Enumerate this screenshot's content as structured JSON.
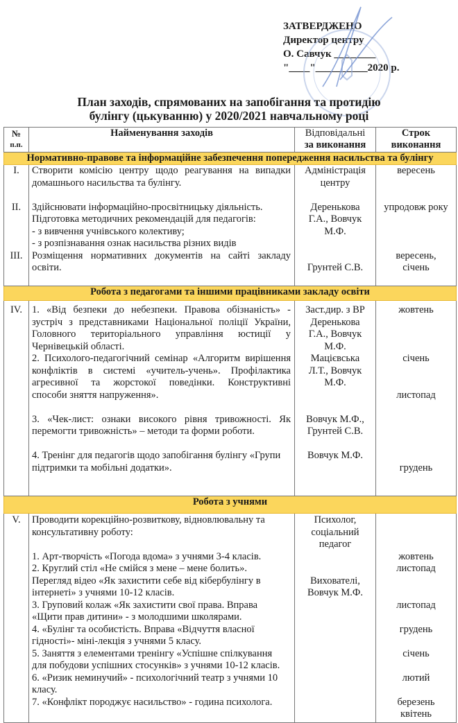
{
  "approval": {
    "line1": "ЗАТВЕРДЖЕНО",
    "line2": "Директор центру",
    "line3": " О. Савчук  ________",
    "line4": "\"____\"__________2020 р."
  },
  "title": {
    "line1": "План заходів, спрямованих на запобігання та протидію",
    "line2": "булінгу (цькуванню)  у 2020/2021 навчальному році"
  },
  "table": {
    "headers": {
      "num": [
        "№",
        "п.п."
      ],
      "name": [
        "Найменування заходів"
      ],
      "resp": [
        "Відповідальні",
        "за виконання"
      ],
      "term": [
        "Строк",
        "виконання"
      ]
    },
    "sections": [
      {
        "title": "Нормативно-правове та інформаційне забезпечення попередження насильства та булінгу",
        "row": {
          "num": [
            "I.",
            "",
            "",
            "II.",
            "",
            "",
            "",
            "III."
          ],
          "name": [
            "Створити комісію центру  щодо реагування на випадки",
            "домашнього насильства та булінгу.",
            "",
            " Здійснювати інформаційно-просвітницьку діяльність.",
            " Підготовка методичних рекомендацій для педагогів:",
            " - з вивчення учнівського колективу;",
            " - з розпізнавання ознак насильства різних видів",
            "Розміщення нормативних документів на сайті закладу",
            "освіти."
          ],
          "resp": [
            "Адміністрація",
            "центру",
            "",
            "Деренькова",
            "Г.А., Вовчук",
            "М.Ф.",
            "",
            "",
            "Грунтей С.В."
          ],
          "term": [
            "вересень",
            "",
            "",
            "упродовж року",
            "",
            "",
            "",
            "вересень,",
            "січень"
          ]
        }
      },
      {
        "title": "Робота з педагогами та іншими працівниками закладу освіти",
        "row": {
          "num": [
            "IV."
          ],
          "name": [
            "1. «Від безпеки до небезпеки. Правова обізнаність» -",
            "зустріч з представниками  Національної поліції України,",
            "Головного територіального управління юстиції у",
            "Чернівецькій області.",
            "2. Психолого-педагогічний семінар «Алгоритм вирішення",
            "конфліктів в системі «учитель-учень». Профілактика",
            "агресивної та жорстокої поведінки. Конструктивні",
            "способи зняття напруження».",
            "",
            "3. «Чек-лист: ознаки високого рівня тривожності. Як",
            "перемогти тривожність» – методи та форми роботи.",
            "",
            "4. Тренінг для педагогів щодо запобігання булінгу  «Групи",
            "підтримки та мобільні додатки»."
          ],
          "resp": [
            "Заст.дир. з ВР",
            "Деренькова",
            "Г.А., Вовчук",
            "М.Ф.",
            "Мацієвська",
            "Л.Т., Вовчук",
            "М.Ф.",
            "",
            "",
            "Вовчук М.Ф.,",
            "Грунтей С.В.",
            "",
            "Вовчук М.Ф."
          ],
          "term": [
            "жовтень",
            "",
            "",
            "",
            "січень",
            "",
            "",
            "листопад",
            "",
            "",
            "",
            "",
            "",
            "грудень"
          ]
        }
      },
      {
        "title": "Робота з учнями",
        "row": {
          "num": [
            "V."
          ],
          "name": [
            "Проводити корекційно-розвиткову, відновлювальну  та",
            "консультативну роботу:",
            "",
            "1. Арт-творчість «Погода вдома» з учнями 3-4 класів.",
            "2. Круглий стіл «Не смійся з мене – мене болить».",
            "Перегляд відео «Як захистити себе від кібербулінгу в",
            "інтернеті» з учнями 10-12 класів.",
            "3. Груповий колаж «Як захистити свої права. Вправа",
            "«Щити прав дитини» - з молодшими школярами.",
            "4. «Булінг та особистість. Вправа «Відчуття власної",
            "гідності»- міні-лекція з учнями 5 класу.",
            "5. Заняття з елементами тренінгу «Успішне спілкування",
            "для побудови успішних стосунків» з учнями 10-12 класів.",
            "6. «Ризик неминучий» - психологічний театр з учнями 10",
            "класу.",
            "7. «Конфлікт породжує насильство» - година психолога."
          ],
          "resp": [
            "Психолог,",
            "соціальний",
            "педагог",
            "",
            "",
            "Вихователі,",
            "Вовчук М.Ф."
          ],
          "term": [
            "",
            "",
            "",
            "жовтень",
            "листопад",
            "",
            "",
            "листопад",
            "",
            "грудень",
            "",
            "січень",
            "",
            "лютий",
            "",
            "березень",
            "квітень"
          ]
        }
      }
    ]
  },
  "colors": {
    "section_bg": "#fbd65c",
    "seal": "#8fa6d6"
  }
}
